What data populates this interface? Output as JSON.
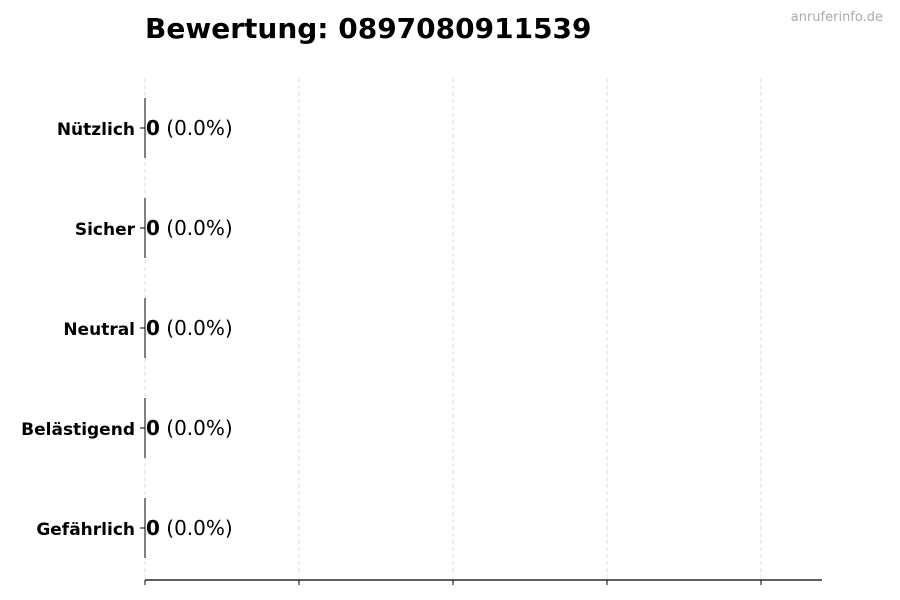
{
  "chart_data": {
    "type": "bar",
    "orientation": "horizontal",
    "title": "Bewertung: 0897080911539",
    "categories": [
      "Nützlich",
      "Sicher",
      "Neutral",
      "Belästigend",
      "Gefährlich"
    ],
    "values": [
      0,
      0,
      0,
      0,
      0
    ],
    "data_labels": [
      {
        "count": "0",
        "percent": "(0.0%)"
      },
      {
        "count": "0",
        "percent": "(0.0%)"
      },
      {
        "count": "0",
        "percent": "(0.0%)"
      },
      {
        "count": "0",
        "percent": "(0.0%)"
      },
      {
        "count": "0",
        "percent": "(0.0%)"
      }
    ],
    "xlim": [
      0,
      4.4
    ],
    "x_ticks": [
      0,
      1,
      2,
      3,
      4
    ],
    "x_tick_labels_shown": false,
    "grid": "vertical dashed",
    "xlabel": "",
    "ylabel": ""
  },
  "watermark": "anruferinfo.de",
  "colors": {
    "bar_edge": "#000000",
    "grid": "#dddddd",
    "watermark": "#aaaaaa"
  }
}
